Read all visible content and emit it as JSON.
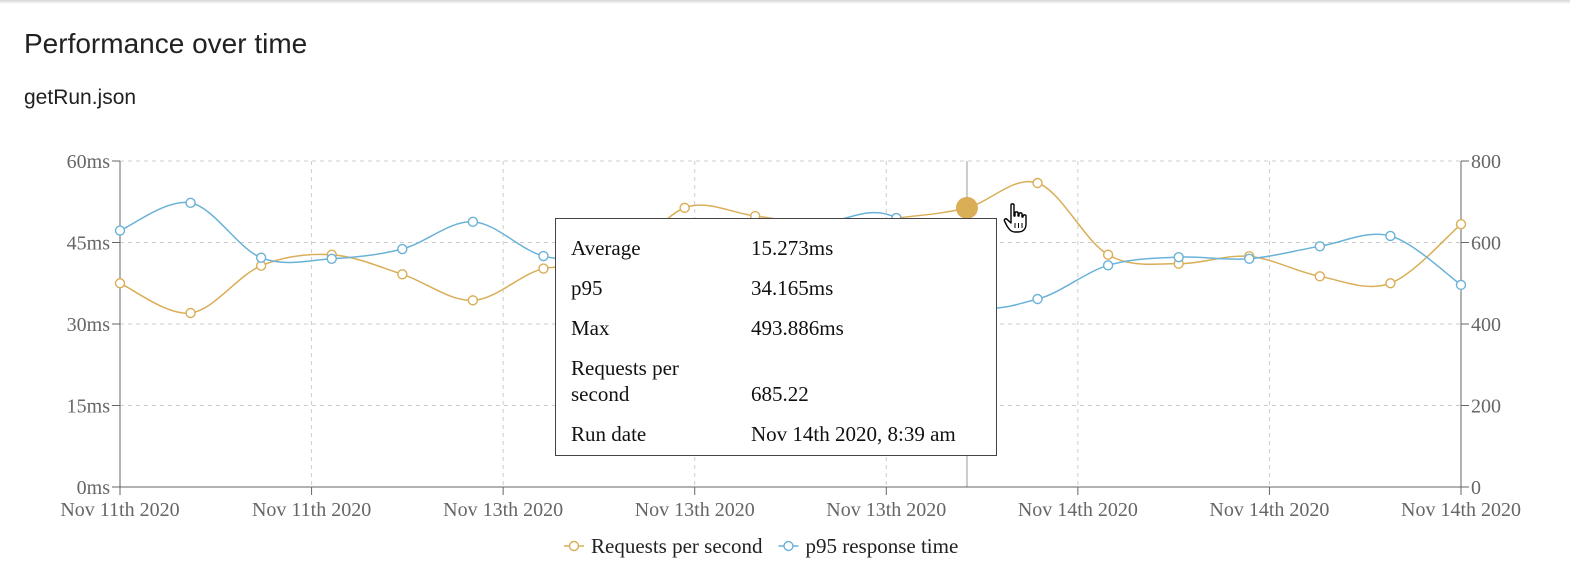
{
  "page": {
    "title": "Performance over time",
    "subtitle": "getRun.json"
  },
  "chart_data": {
    "type": "line",
    "x_tick_labels": [
      "Nov 11th 2020",
      "Nov 11th 2020",
      "Nov 13th 2020",
      "Nov 13th 2020",
      "Nov 13th 2020",
      "Nov 14th 2020",
      "Nov 14th 2020",
      "Nov 14th 2020"
    ],
    "y_left": {
      "ticks": [
        "0ms",
        "15ms",
        "30ms",
        "45ms",
        "60ms"
      ],
      "range": [
        0,
        60
      ]
    },
    "y_right": {
      "ticks": [
        "0",
        "200",
        "400",
        "600",
        "800"
      ],
      "range": [
        0,
        800
      ]
    },
    "grid": true,
    "legend_placement": "bottom-center",
    "series": [
      {
        "name": "Requests per second",
        "axis": "right",
        "color": "#daae57",
        "values": [
          500,
          427,
          543,
          570,
          522,
          458,
          536,
          540,
          685,
          665,
          644,
          660,
          685,
          746,
          570,
          548,
          566,
          517,
          500,
          645
        ]
      },
      {
        "name": "p95 response time",
        "axis": "left",
        "color": "#6ab2d8",
        "values": [
          47.2,
          52.3,
          42.2,
          42.0,
          43.8,
          48.8,
          42.5,
          42.0,
          41.5,
          44.0,
          48.5,
          49.5,
          34.165,
          34.6,
          40.8,
          42.3,
          42.0,
          44.3,
          46.2,
          37.2
        ]
      }
    ],
    "active_index": 12
  },
  "tooltip": {
    "rows": [
      {
        "label": "Average",
        "value": "15.273ms"
      },
      {
        "label": "p95",
        "value": "34.165ms"
      },
      {
        "label": "Max",
        "value": "493.886ms"
      },
      {
        "label": "Requests per second",
        "value": "685.22"
      },
      {
        "label": "Run date",
        "value": "Nov 14th 2020, 8:39 am"
      }
    ]
  }
}
